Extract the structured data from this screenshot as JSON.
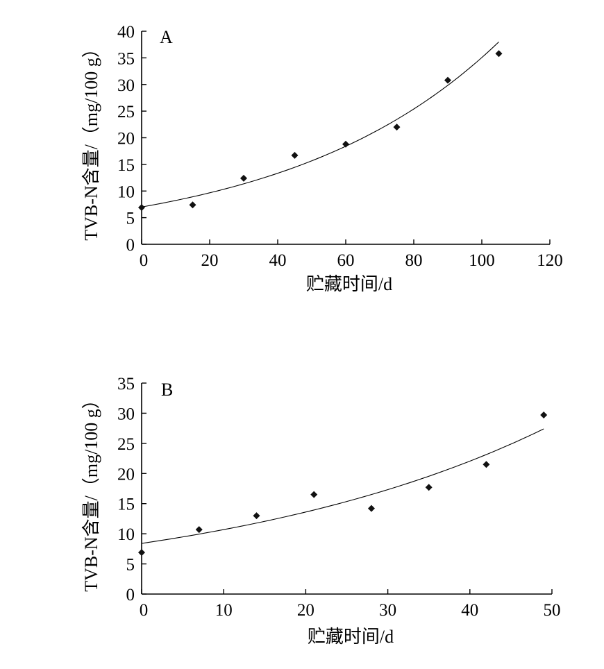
{
  "chart_data": [
    {
      "type": "scatter",
      "panel_label": "A",
      "xlabel": "贮藏时间/d",
      "ylabel": "TVB-N含量/（mg/100 g）",
      "xlim": [
        0,
        120
      ],
      "ylim": [
        0,
        40
      ],
      "x_ticks": [
        "0",
        "20",
        "40",
        "60",
        "80",
        "100",
        "120"
      ],
      "y_ticks": [
        "0",
        "5",
        "10",
        "15",
        "20",
        "25",
        "30",
        "35",
        "40"
      ],
      "grid": false,
      "series": [
        {
          "x": [
            0,
            15,
            30,
            45,
            60,
            75,
            90,
            105
          ],
          "y": [
            6.9,
            7.4,
            12.4,
            16.7,
            18.8,
            22.0,
            30.8,
            35.8
          ]
        }
      ],
      "fit": {
        "x_range": [
          0,
          105
        ],
        "y_start": 7.0,
        "y_end": 38.0
      }
    },
    {
      "type": "scatter",
      "panel_label": "B",
      "xlabel": "贮藏时间/d",
      "ylabel": "TVB-N含量/（mg/100 g）",
      "xlim": [
        0,
        50
      ],
      "ylim": [
        0,
        35
      ],
      "x_ticks": [
        "0",
        "10",
        "20",
        "30",
        "40",
        "50"
      ],
      "y_ticks": [
        "0",
        "5",
        "10",
        "15",
        "20",
        "25",
        "30",
        "35"
      ],
      "grid": false,
      "series": [
        {
          "x": [
            0,
            7,
            14,
            21,
            28,
            35,
            42,
            49
          ],
          "y": [
            6.9,
            10.7,
            13.0,
            16.5,
            14.2,
            17.7,
            21.5,
            29.7
          ]
        }
      ],
      "fit": {
        "x_range": [
          0,
          49
        ],
        "y_start": 8.4,
        "y_end": 27.4
      }
    }
  ]
}
